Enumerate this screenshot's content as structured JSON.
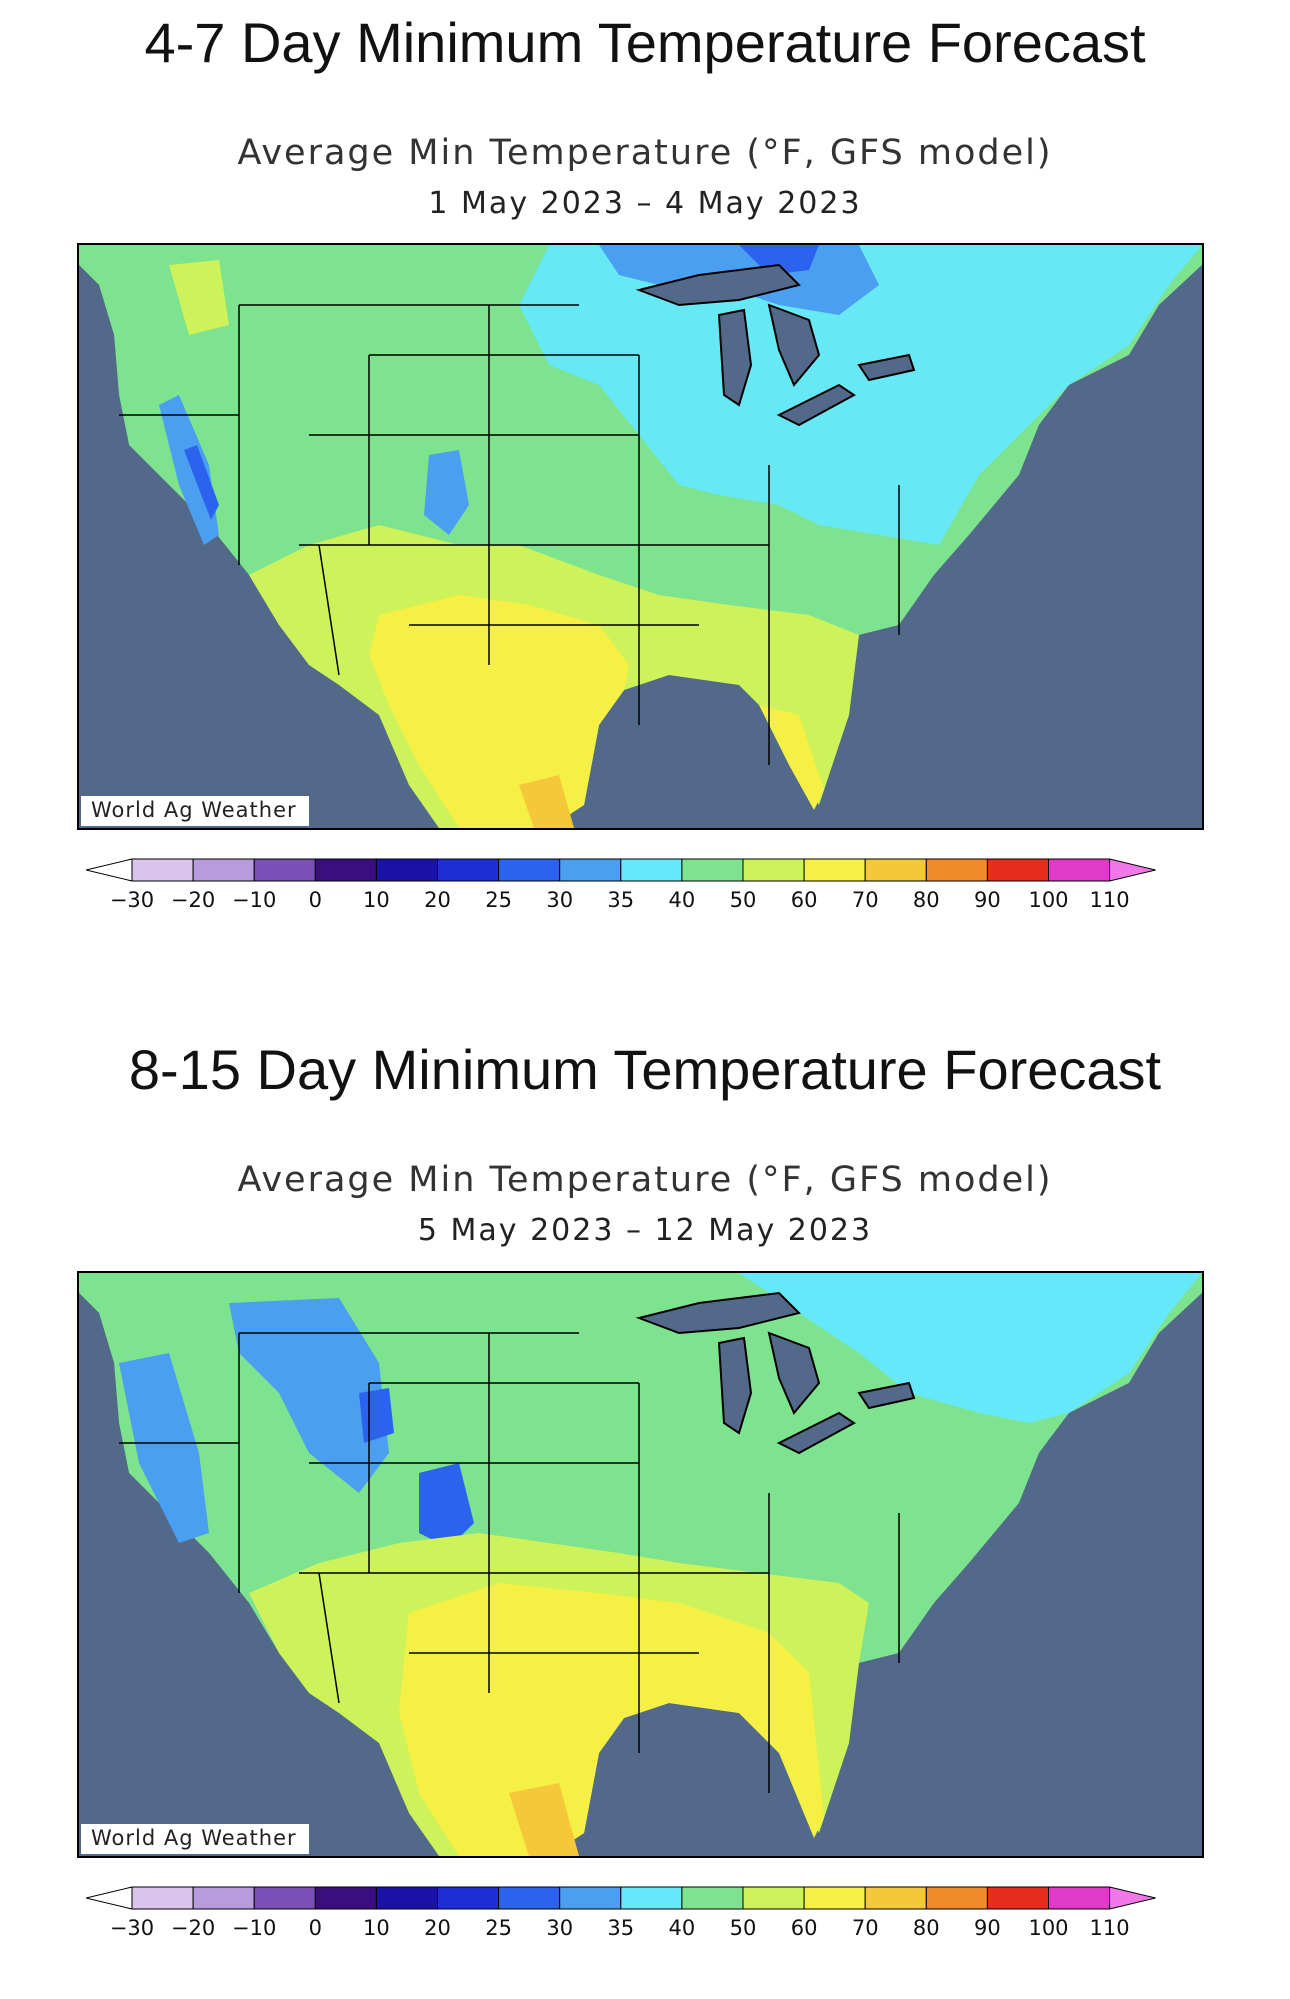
{
  "panels": [
    {
      "heading": "4-7 Day Minimum Temperature Forecast",
      "subtitle": "Average Min Temperature (°F, GFS model)",
      "date_range": "1 May 2023 – 4 May 2023",
      "watermark": "World Ag Weather"
    },
    {
      "heading": "8-15 Day Minimum Temperature Forecast",
      "subtitle": "Average Min Temperature (°F, GFS model)",
      "date_range": "5 May 2023 – 12 May 2023",
      "watermark": "World Ag Weather"
    }
  ],
  "colorbar": {
    "labels": [
      "−30",
      "−20",
      "−10",
      "0",
      "10",
      "20",
      "25",
      "30",
      "35",
      "40",
      "50",
      "60",
      "70",
      "80",
      "90",
      "100",
      "110"
    ],
    "colors": [
      "#d8c4ec",
      "#b79bdc",
      "#7a4fb8",
      "#3b0d7e",
      "#1a12a8",
      "#1c2fd6",
      "#2b63ee",
      "#4a9ff0",
      "#66e8fb",
      "#7de38e",
      "#cdf25a",
      "#f6f045",
      "#f5c83a",
      "#f08a2a",
      "#e52e1e",
      "#e23ac8"
    ],
    "low_end_color": "#ffffff",
    "high_end_color": "#f078e8"
  },
  "palette": {
    "ocean": "#52698a",
    "lakes": "#52698a",
    "cold_blue": "#2b63ee",
    "light_blue": "#4a9ff0",
    "cyan": "#66e8fb",
    "green": "#7de38e",
    "yellow_green": "#cdf25a",
    "yellow": "#f6f045",
    "orange": "#f5c83a"
  }
}
